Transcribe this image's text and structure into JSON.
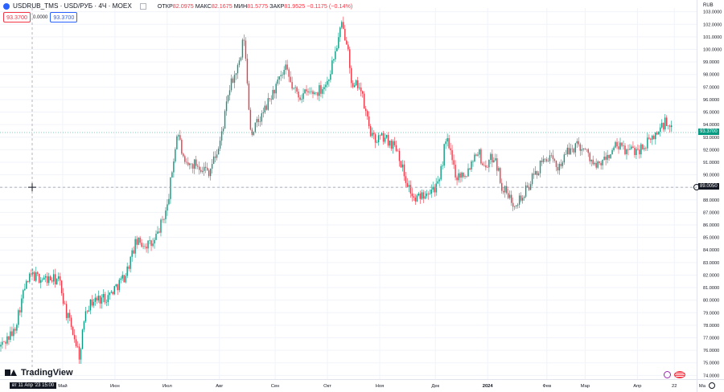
{
  "header": {
    "title": "USDRUB_TMS · USD/РУБ · 4Ч · MOEX",
    "ohlc_open_label": "ОТКР",
    "ohlc_open": "82.0975",
    "ohlc_high_label": "МАКС",
    "ohlc_high": "82.1675",
    "ohlc_low_label": "МИН",
    "ohlc_low": "81.5775",
    "ohlc_close_label": "ЗАКР",
    "ohlc_close": "81.9525",
    "ohlc_change": "−0.1175 (−0.14%)"
  },
  "price_boxes": {
    "bid": "93.3700",
    "spread": "0.0000",
    "ask": "93.3700"
  },
  "currency": "RUB",
  "last_price_tag": "93.3700",
  "crosshair_price_tag": "89.0050",
  "crosshair_time_tag": "вт 11 Апр '23  15:00",
  "branding": "TradingView",
  "colors": {
    "up": "#089981",
    "down": "#f23645",
    "accent": "#2962ff",
    "grid": "#f0f3fa"
  },
  "icons": {
    "symbol": "circle-icon",
    "settings": "gear-icon",
    "crosshair": "crosshair-icon",
    "bolt": "bolt-icon",
    "flag": "flag-icon"
  },
  "chart_data": {
    "type": "candlestick",
    "title": "USDRUB_TMS",
    "ylabel": "",
    "xlabel": "",
    "ylim": [
      73.7,
      103.3
    ],
    "y_ticks": [
      "103.0000",
      "102.0000",
      "101.0000",
      "100.0000",
      "99.0000",
      "98.0000",
      "97.0000",
      "96.0000",
      "95.0000",
      "94.0000",
      "93.0000",
      "92.0000",
      "91.0000",
      "90.0000",
      "89.0000",
      "88.0000",
      "87.0000",
      "86.0000",
      "85.0000",
      "84.0000",
      "83.0000",
      "82.0000",
      "81.0000",
      "80.0000",
      "79.0000",
      "78.0000",
      "77.0000",
      "76.0000",
      "75.0000",
      "74.0000"
    ],
    "x_ticks": [
      {
        "label": "Май",
        "t": 0.09
      },
      {
        "label": "Июн",
        "t": 0.165
      },
      {
        "label": "Июл",
        "t": 0.24
      },
      {
        "label": "Авг",
        "t": 0.315
      },
      {
        "label": "Сен",
        "t": 0.395
      },
      {
        "label": "Окт",
        "t": 0.47
      },
      {
        "label": "Ноя",
        "t": 0.545
      },
      {
        "label": "Дек",
        "t": 0.625
      },
      {
        "label": "2024",
        "t": 0.7
      },
      {
        "label": "Фев",
        "t": 0.785
      },
      {
        "label": "Мар",
        "t": 0.84
      },
      {
        "label": "Апр",
        "t": 0.915
      },
      {
        "label": "22",
        "t": 0.968
      },
      {
        "label": "Ма",
        "t": 1.008
      }
    ],
    "path_keypoints": [
      [
        0.0,
        76.3
      ],
      [
        0.02,
        77.5
      ],
      [
        0.035,
        80.9
      ],
      [
        0.045,
        82.0
      ],
      [
        0.06,
        81.7
      ],
      [
        0.085,
        81.6
      ],
      [
        0.095,
        79.0
      ],
      [
        0.105,
        77.4
      ],
      [
        0.115,
        75.4
      ],
      [
        0.122,
        79.3
      ],
      [
        0.135,
        80.0
      ],
      [
        0.155,
        80.3
      ],
      [
        0.18,
        82.0
      ],
      [
        0.195,
        84.6
      ],
      [
        0.22,
        84.4
      ],
      [
        0.24,
        87.4
      ],
      [
        0.255,
        93.6
      ],
      [
        0.265,
        90.6
      ],
      [
        0.28,
        90.9
      ],
      [
        0.3,
        90.3
      ],
      [
        0.315,
        92.3
      ],
      [
        0.33,
        97.0
      ],
      [
        0.345,
        99.0
      ],
      [
        0.35,
        101.2
      ],
      [
        0.36,
        93.3
      ],
      [
        0.375,
        94.6
      ],
      [
        0.395,
        96.9
      ],
      [
        0.41,
        98.4
      ],
      [
        0.42,
        96.9
      ],
      [
        0.43,
        96.3
      ],
      [
        0.44,
        96.5
      ],
      [
        0.455,
        96.6
      ],
      [
        0.47,
        97.4
      ],
      [
        0.485,
        100.6
      ],
      [
        0.49,
        101.9
      ],
      [
        0.5,
        100.4
      ],
      [
        0.505,
        96.6
      ],
      [
        0.515,
        97.4
      ],
      [
        0.525,
        94.9
      ],
      [
        0.535,
        92.8
      ],
      [
        0.55,
        93.0
      ],
      [
        0.57,
        92.2
      ],
      [
        0.58,
        90.0
      ],
      [
        0.595,
        87.9
      ],
      [
        0.615,
        88.9
      ],
      [
        0.63,
        89.1
      ],
      [
        0.64,
        93.0
      ],
      [
        0.655,
        89.9
      ],
      [
        0.67,
        90.2
      ],
      [
        0.685,
        92.1
      ],
      [
        0.695,
        90.6
      ],
      [
        0.71,
        91.6
      ],
      [
        0.72,
        89.1
      ],
      [
        0.735,
        87.8
      ],
      [
        0.75,
        88.2
      ],
      [
        0.765,
        89.8
      ],
      [
        0.785,
        91.5
      ],
      [
        0.8,
        90.6
      ],
      [
        0.815,
        91.8
      ],
      [
        0.83,
        92.5
      ],
      [
        0.845,
        91.6
      ],
      [
        0.855,
        90.5
      ],
      [
        0.87,
        91.3
      ],
      [
        0.885,
        92.3
      ],
      [
        0.9,
        91.9
      ],
      [
        0.92,
        92.1
      ],
      [
        0.935,
        92.8
      ],
      [
        0.945,
        93.5
      ],
      [
        0.955,
        94.2
      ],
      [
        0.965,
        93.4
      ]
    ],
    "last_price": 93.37,
    "crosshair_price": 89.005,
    "grid": true
  }
}
